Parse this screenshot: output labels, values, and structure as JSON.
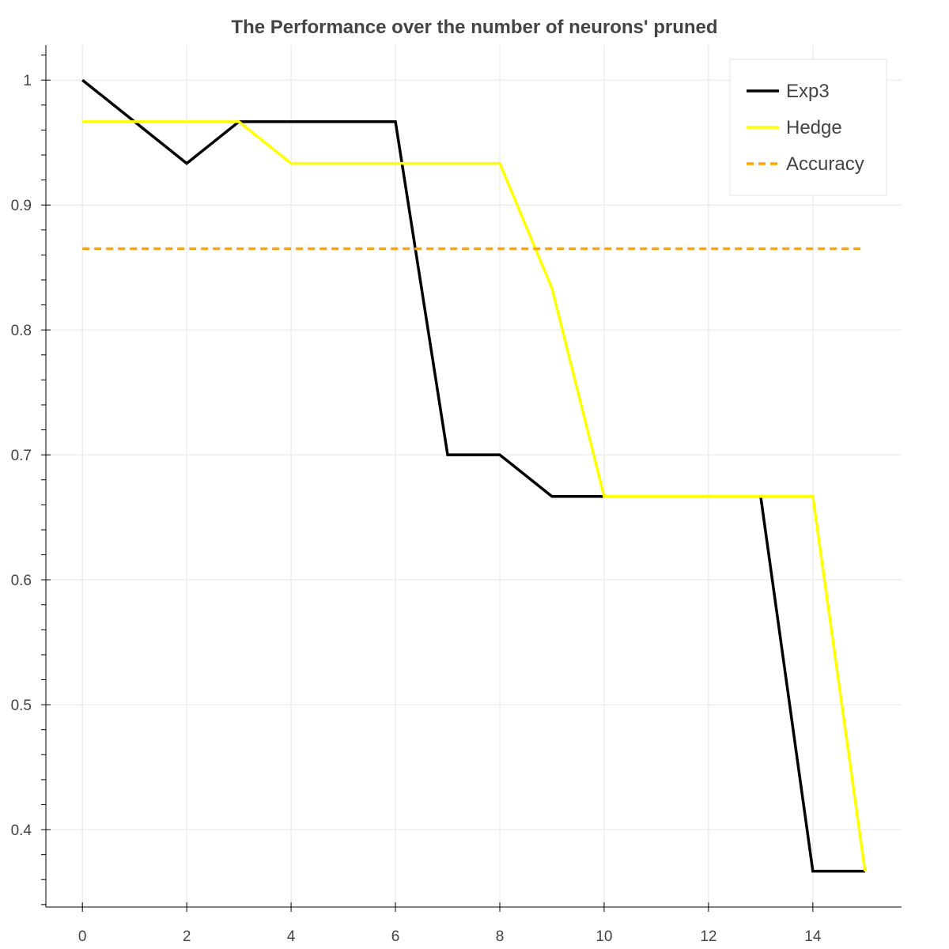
{
  "chart_data": {
    "type": "line",
    "title": "The Performance over the number of neurons' pruned",
    "xlabel": "",
    "ylabel": "",
    "xlim": [
      -0.7,
      15.7
    ],
    "ylim": [
      0.338,
      1.028
    ],
    "x_ticks": [
      0,
      2,
      4,
      6,
      8,
      10,
      12,
      14
    ],
    "x_tick_labels": [
      "0",
      "2",
      "4",
      "6",
      "8",
      "10",
      "12",
      "14"
    ],
    "y_ticks": [
      0.4,
      0.5,
      0.6,
      0.7,
      0.8,
      0.9,
      1.0
    ],
    "y_tick_labels": [
      "0.4",
      "0.5",
      "0.6",
      "0.7",
      "0.8",
      "0.9",
      "1"
    ],
    "grid": true,
    "legend_position": "top-right",
    "series": [
      {
        "name": "Exp3",
        "color": "#000000",
        "dash": "solid",
        "x": [
          0,
          1,
          2,
          3,
          4,
          5,
          6,
          7,
          8,
          9,
          10,
          11,
          12,
          13,
          14,
          15
        ],
        "y": [
          1.0,
          0.9667,
          0.9333,
          0.9667,
          0.9667,
          0.9667,
          0.9667,
          0.7,
          0.7,
          0.6667,
          0.6667,
          0.6667,
          0.6667,
          0.6667,
          0.3667,
          0.3667
        ]
      },
      {
        "name": "Hedge",
        "color": "#ffff00",
        "dash": "solid",
        "x": [
          0,
          1,
          2,
          3,
          4,
          5,
          6,
          7,
          8,
          9,
          10,
          11,
          12,
          13,
          14,
          15
        ],
        "y": [
          0.9667,
          0.9667,
          0.9667,
          0.9667,
          0.9333,
          0.9333,
          0.9333,
          0.9333,
          0.9333,
          0.8333,
          0.6667,
          0.6667,
          0.6667,
          0.6667,
          0.6667,
          0.3667
        ]
      },
      {
        "name": "Accuracy",
        "color": "#ffa500",
        "dash": "dashed",
        "x": [
          0,
          15
        ],
        "y": [
          0.865,
          0.865
        ]
      }
    ]
  }
}
